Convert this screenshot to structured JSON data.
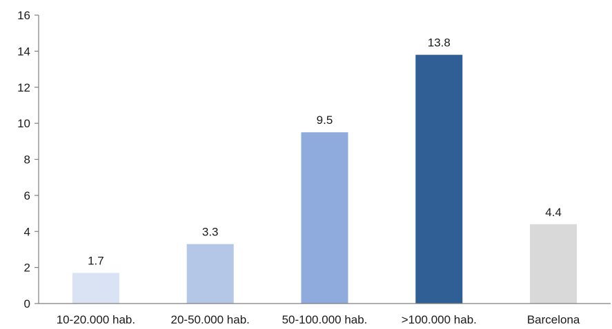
{
  "chart_data": {
    "type": "bar",
    "title": "",
    "xlabel": "",
    "ylabel": "",
    "ylim": [
      0,
      16
    ],
    "yticks": [
      0,
      2,
      4,
      6,
      8,
      10,
      12,
      14,
      16
    ],
    "grid": false,
    "categories": [
      "10-20.000 hab.",
      "20-50.000 hab.",
      "50-100.000 hab.",
      ">100.000 hab.",
      "Barcelona"
    ],
    "values": [
      1.7,
      3.3,
      9.5,
      13.8,
      4.4
    ],
    "data_labels": [
      "1.7",
      "3.3",
      "9.5",
      "13.8",
      "4.4"
    ],
    "colors": [
      "#dae3f3",
      "#b4c7e7",
      "#8faadc",
      "#2f5f94",
      "#d9d9d9"
    ],
    "axis_color": "#7f7f7f"
  }
}
